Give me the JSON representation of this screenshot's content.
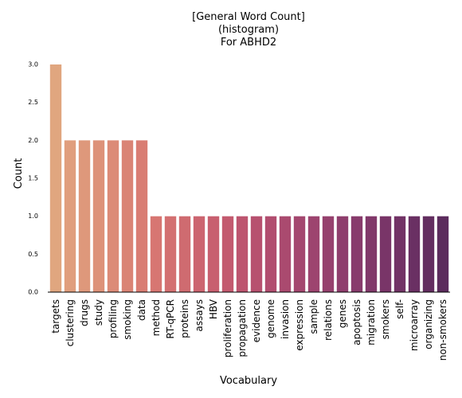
{
  "chart_data": {
    "type": "bar",
    "title_lines": [
      "[General Word Count]",
      "(histogram)",
      "For ABHD2"
    ],
    "xlabel": "Vocabulary",
    "ylabel": "Count",
    "ylim": [
      0,
      3.0
    ],
    "yticks": [
      "0.0",
      "0.5",
      "1.0",
      "1.5",
      "2.0",
      "2.5",
      "3.0"
    ],
    "grid": false,
    "categories": [
      "targets",
      "clustering",
      "drugs",
      "study",
      "profiling",
      "smoking",
      "data",
      "method",
      "RT-qPCR",
      "proteins",
      "assays",
      "HBV",
      "proliferation",
      "propagation",
      "evidence",
      "genome",
      "invasion",
      "expression",
      "sample",
      "relations",
      "genes",
      "apoptosis",
      "migration",
      "smokers",
      "self-",
      "microarray",
      "organizing",
      "non-smokers"
    ],
    "values": [
      3,
      2,
      2,
      2,
      2,
      2,
      2,
      1,
      1,
      1,
      1,
      1,
      1,
      1,
      1,
      1,
      1,
      1,
      1,
      1,
      1,
      1,
      1,
      1,
      1,
      1,
      1,
      1
    ],
    "colors": [
      "#e0a67f",
      "#e09e7d",
      "#de987b",
      "#dd9279",
      "#dc8b77",
      "#da8475",
      "#d97d73",
      "#d77672",
      "#d37071",
      "#cf6b70",
      "#cc6570",
      "#c85f6f",
      "#c35a6f",
      "#bd556f",
      "#b7516f",
      "#b14d6f",
      "#aa4a6f",
      "#a4476f",
      "#9d446f",
      "#96416e",
      "#8f3e6d",
      "#883b6c",
      "#81386a",
      "#793568",
      "#723366",
      "#6a3063",
      "#632e60",
      "#5c2c5d"
    ]
  }
}
